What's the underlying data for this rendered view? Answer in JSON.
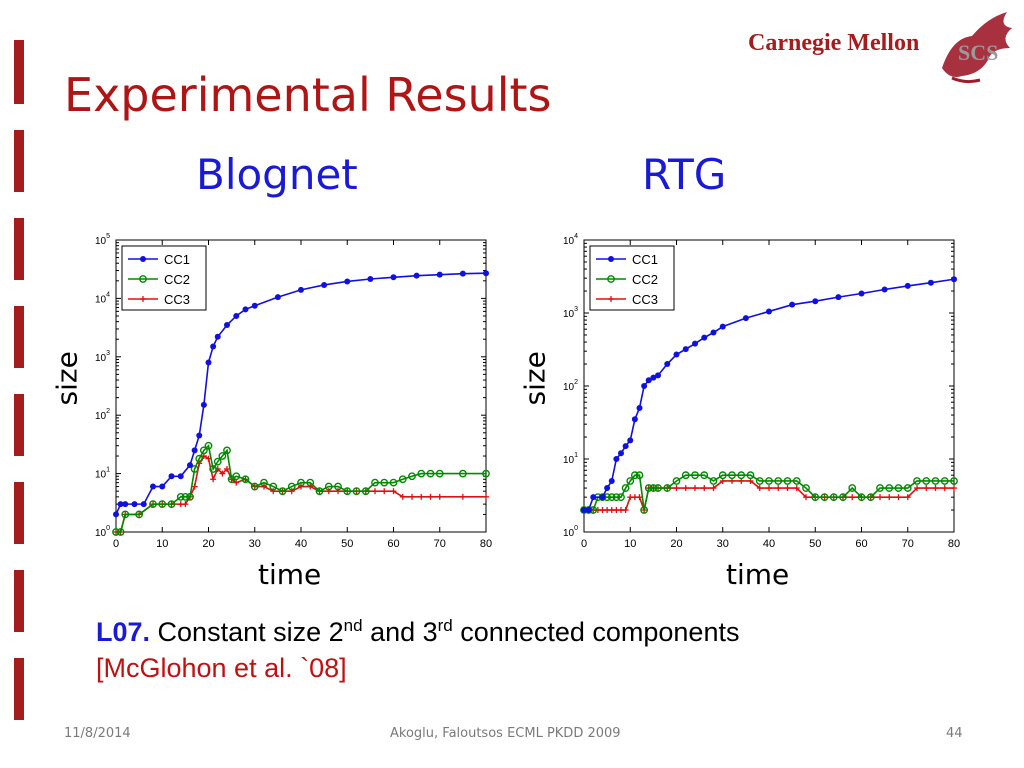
{
  "slide": {
    "title": "Experimental Results",
    "logo_text": "Carnegie Mellon",
    "logo_sub": "SCS",
    "caption": {
      "lemma": "L07.",
      "text_a": " Constant size 2",
      "sup_a": "nd",
      "text_b": " and 3",
      "sup_b": "rd",
      "text_c": " connected components",
      "citation": "[McGlohon et al. `08]"
    },
    "footer": {
      "date": "11/8/2014",
      "center": "Akoglu, Faloutsos ECML PKDD 2009",
      "page": "44"
    }
  },
  "chart_data": [
    {
      "type": "line",
      "title": "Blognet",
      "xlabel": "time",
      "ylabel": "size",
      "y_scale": "log",
      "xlim": [
        0,
        80
      ],
      "ylim_exp": [
        0,
        5
      ],
      "x_ticks": [
        "0",
        "10",
        "20",
        "30",
        "40",
        "50",
        "60",
        "70",
        "80"
      ],
      "y_tick_labels": [
        [
          "10",
          "0"
        ],
        [
          "10",
          "1"
        ],
        [
          "10",
          "2"
        ],
        [
          "10",
          "3"
        ],
        [
          "10",
          "4"
        ],
        [
          "10",
          "5"
        ]
      ],
      "legend_position": "top-left",
      "series": [
        {
          "name": "CC1",
          "color": "#1010e0",
          "marker": "dot",
          "x": [
            0,
            1,
            2,
            4,
            6,
            8,
            10,
            12,
            14,
            16,
            17,
            18,
            19,
            20,
            21,
            22,
            24,
            26,
            28,
            30,
            35,
            40,
            45,
            50,
            55,
            60,
            65,
            70,
            75,
            80
          ],
          "y": [
            2,
            3,
            3,
            3,
            3,
            6,
            6,
            9,
            9,
            14,
            25,
            45,
            150,
            800,
            1500,
            2200,
            3500,
            5000,
            6500,
            7500,
            10500,
            14000,
            17000,
            19500,
            21500,
            23000,
            24500,
            25500,
            26500,
            27000
          ]
        },
        {
          "name": "CC2",
          "color": "#008a00",
          "marker": "circle",
          "x": [
            0,
            1,
            2,
            5,
            8,
            10,
            12,
            14,
            15,
            16,
            17,
            18,
            19,
            20,
            21,
            22,
            23,
            24,
            25,
            26,
            28,
            30,
            32,
            34,
            36,
            38,
            40,
            42,
            44,
            46,
            48,
            50,
            52,
            54,
            56,
            58,
            60,
            62,
            64,
            66,
            68,
            70,
            75,
            80
          ],
          "y": [
            1,
            1,
            2,
            2,
            3,
            3,
            3,
            4,
            4,
            4,
            12,
            18,
            25,
            30,
            12,
            16,
            20,
            25,
            8,
            9,
            8,
            6,
            7,
            6,
            5,
            6,
            7,
            7,
            5,
            6,
            6,
            5,
            5,
            5,
            7,
            7,
            7,
            8,
            9,
            10,
            10,
            10,
            10,
            10
          ]
        },
        {
          "name": "CC3",
          "color": "#e01010",
          "marker": "plus",
          "x": [
            0,
            1,
            2,
            5,
            8,
            10,
            12,
            14,
            15,
            16,
            17,
            18,
            19,
            20,
            21,
            22,
            23,
            24,
            25,
            26,
            28,
            30,
            32,
            34,
            36,
            38,
            40,
            42,
            44,
            46,
            48,
            50,
            52,
            54,
            56,
            58,
            60,
            62,
            64,
            66,
            68,
            70,
            75,
            80
          ],
          "y": [
            1,
            1,
            2,
            2,
            3,
            3,
            3,
            3,
            3,
            4,
            6,
            15,
            20,
            18,
            8,
            12,
            10,
            12,
            8,
            7,
            8,
            6,
            6,
            5,
            5,
            5,
            6,
            6,
            5,
            5,
            5,
            5,
            5,
            5,
            5,
            5,
            5,
            4,
            4,
            4,
            4,
            4,
            4,
            4
          ]
        }
      ]
    },
    {
      "type": "line",
      "title": "RTG",
      "xlabel": "time",
      "ylabel": "size",
      "y_scale": "log",
      "xlim": [
        0,
        80
      ],
      "ylim_exp": [
        0,
        4
      ],
      "x_ticks": [
        "0",
        "10",
        "20",
        "30",
        "40",
        "50",
        "60",
        "70",
        "80"
      ],
      "y_tick_labels": [
        [
          "10",
          "0"
        ],
        [
          "10",
          "1"
        ],
        [
          "10",
          "2"
        ],
        [
          "10",
          "3"
        ],
        [
          "10",
          "4"
        ]
      ],
      "legend_position": "top-left",
      "series": [
        {
          "name": "CC1",
          "color": "#1010e0",
          "marker": "dot",
          "x": [
            0,
            1,
            2,
            4,
            5,
            6,
            7,
            8,
            9,
            10,
            11,
            12,
            13,
            14,
            15,
            16,
            18,
            20,
            22,
            24,
            26,
            28,
            30,
            35,
            40,
            45,
            50,
            55,
            60,
            65,
            70,
            75,
            80
          ],
          "y": [
            2,
            2,
            3,
            3,
            4,
            5,
            10,
            12,
            15,
            18,
            35,
            50,
            100,
            120,
            130,
            140,
            200,
            270,
            320,
            380,
            460,
            540,
            650,
            850,
            1050,
            1300,
            1450,
            1650,
            1850,
            2100,
            2350,
            2600,
            2900
          ]
        },
        {
          "name": "CC2",
          "color": "#008a00",
          "marker": "circle",
          "x": [
            0,
            1,
            2,
            3,
            4,
            5,
            6,
            7,
            8,
            9,
            10,
            11,
            12,
            13,
            14,
            15,
            16,
            18,
            20,
            22,
            24,
            26,
            28,
            30,
            32,
            34,
            36,
            38,
            40,
            42,
            44,
            46,
            48,
            50,
            52,
            54,
            56,
            58,
            60,
            62,
            64,
            66,
            68,
            70,
            72,
            74,
            76,
            78,
            80
          ],
          "y": [
            2,
            2,
            2,
            3,
            3,
            3,
            3,
            3,
            3,
            4,
            5,
            6,
            6,
            2,
            4,
            4,
            4,
            4,
            5,
            6,
            6,
            6,
            5,
            6,
            6,
            6,
            6,
            5,
            5,
            5,
            5,
            5,
            4,
            3,
            3,
            3,
            3,
            4,
            3,
            3,
            4,
            4,
            4,
            4,
            5,
            5,
            5,
            5,
            5
          ]
        },
        {
          "name": "CC3",
          "color": "#e01010",
          "marker": "plus",
          "x": [
            0,
            1,
            2,
            3,
            4,
            5,
            6,
            7,
            8,
            9,
            10,
            11,
            12,
            13,
            14,
            15,
            16,
            18,
            20,
            22,
            24,
            26,
            28,
            30,
            32,
            34,
            36,
            38,
            40,
            42,
            44,
            46,
            48,
            50,
            52,
            54,
            56,
            58,
            60,
            62,
            64,
            66,
            68,
            70,
            72,
            74,
            76,
            78,
            80
          ],
          "y": [
            2,
            2,
            2,
            2,
            2,
            2,
            2,
            2,
            2,
            2,
            3,
            3,
            3,
            2,
            4,
            4,
            4,
            4,
            4,
            4,
            4,
            4,
            4,
            5,
            5,
            5,
            5,
            4,
            4,
            4,
            4,
            4,
            3,
            3,
            3,
            3,
            3,
            3,
            3,
            3,
            3,
            3,
            3,
            3,
            4,
            4,
            4,
            4,
            4
          ]
        }
      ]
    }
  ]
}
